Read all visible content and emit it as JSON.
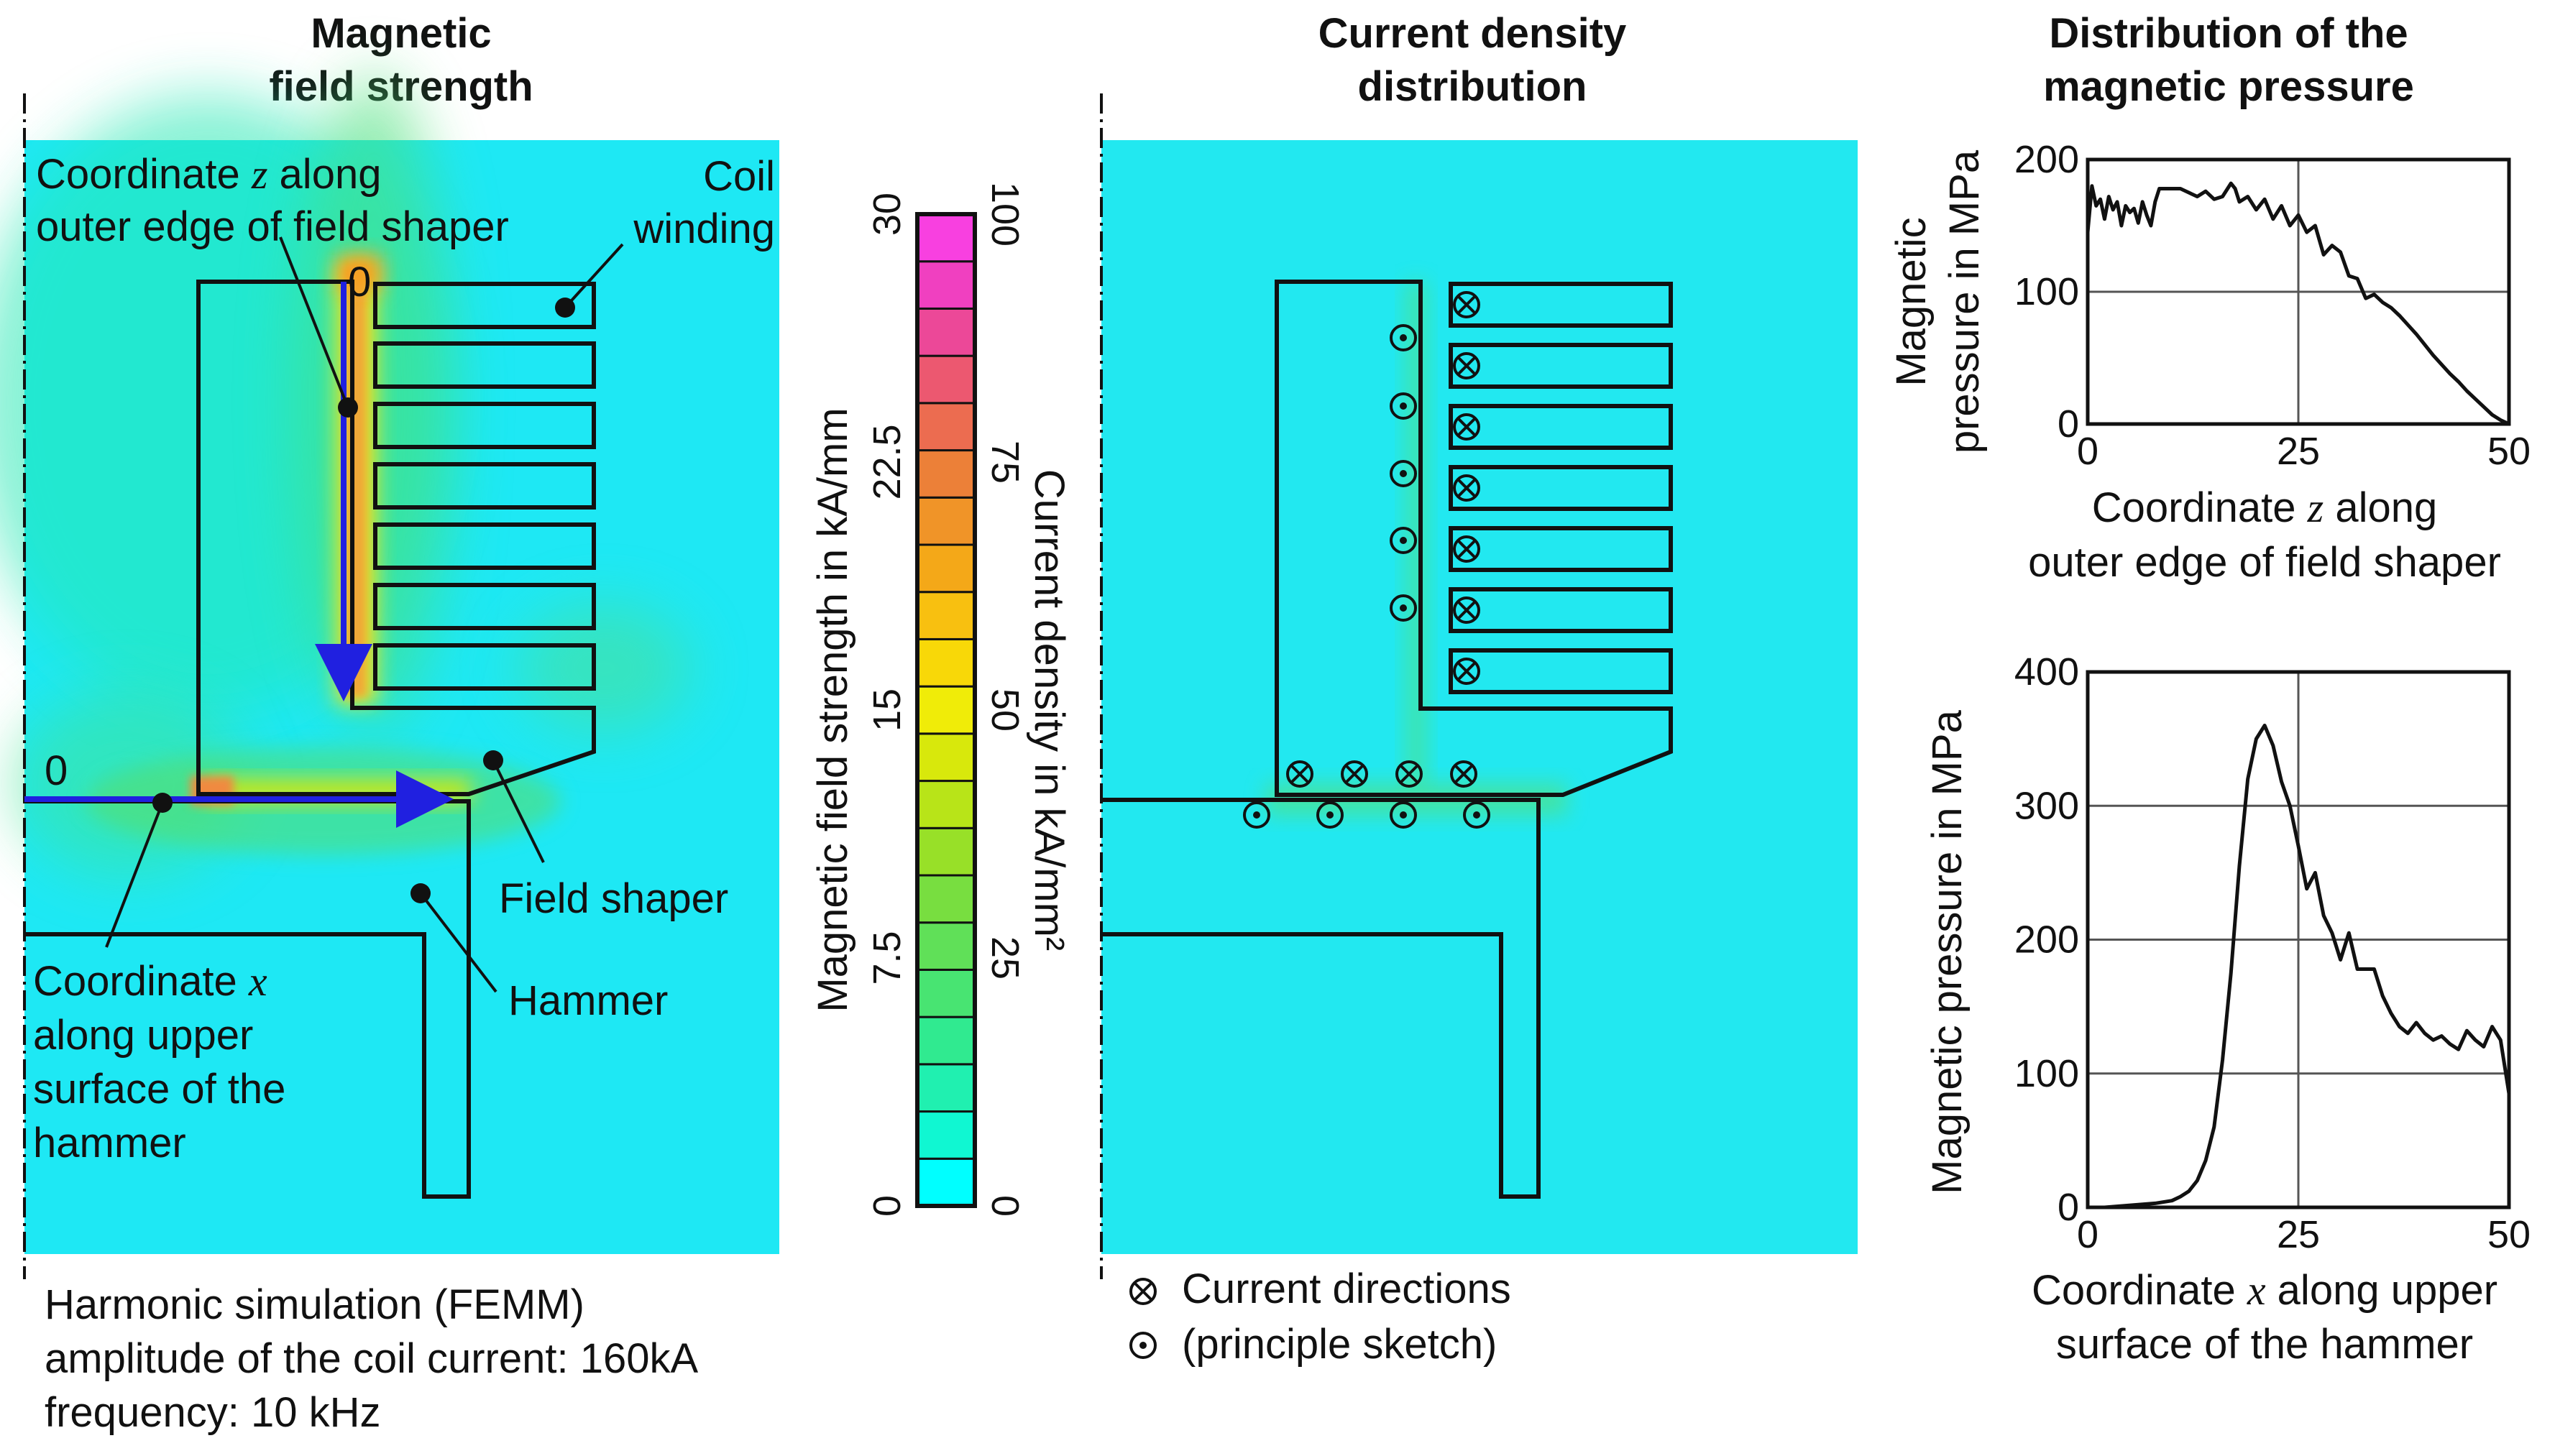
{
  "titles": {
    "field_line1": "Magnetic",
    "field_line2": "field strength",
    "current_line1": "Current density",
    "current_line2": "distribution",
    "pressure_line1": "Distribution of the",
    "pressure_line2": "magnetic pressure"
  },
  "labels": {
    "coord_z_pre": "Coordinate ",
    "coord_z_var": "z",
    "coord_z_post": " along",
    "coord_z_line2": "outer edge of field shaper",
    "coil_line1": "Coil",
    "coil_line2": "winding",
    "field_shaper": "Field shaper",
    "hammer": "Hammer",
    "coord_x_pre": "Coordinate ",
    "coord_x_var": "x",
    "coord_x_line2": "along upper",
    "coord_x_line3": "surface of the",
    "coord_x_line4": "hammer",
    "zero_z": "0",
    "zero_x": "0"
  },
  "notes": {
    "line1": "Harmonic simulation (FEMM)",
    "line2": "amplitude of the coil current: 160kA",
    "line3": "frequency: 10 kHz"
  },
  "legend": {
    "cross_label": "Current directions",
    "dot_label": "(principle sketch)"
  },
  "colorbar": {
    "field_label": "Magnetic field strength in kA/mm",
    "current_label": "Current density in kA/mm²",
    "field_ticks": [
      "0",
      "7.5",
      "15",
      "22.5",
      "30"
    ],
    "current_ticks": [
      "0",
      "25",
      "50",
      "75",
      "100"
    ],
    "colors": [
      "#00ffff",
      "#10f7d2",
      "#20f0b0",
      "#30ea90",
      "#48e472",
      "#60e058",
      "#78de40",
      "#98e028",
      "#b8e418",
      "#d8e80c",
      "#f0ec08",
      "#f8d808",
      "#f8c010",
      "#f4a818",
      "#f09428",
      "#ec8038",
      "#ec6c50",
      "#ec5870",
      "#ec4898",
      "#f040c0",
      "#f840e0"
    ]
  },
  "colors": {
    "field_bg": "#1ee8f4",
    "current_bg": "#22e8f0",
    "arrow": "#2020e0"
  },
  "chart_data": [
    {
      "type": "line",
      "title": "Distribution of the magnetic pressure",
      "xlabel_pre": "Coordinate ",
      "xlabel_var": "z",
      "xlabel_post": " along",
      "xlabel_line2": "outer edge of field shaper",
      "ylabel_line1": "Magnetic",
      "ylabel_line2": "pressure in MPa",
      "xlim": [
        0,
        50
      ],
      "ylim": [
        0,
        200
      ],
      "xticks": [
        "0",
        "25",
        "50"
      ],
      "yticks": [
        "0",
        "100",
        "200"
      ],
      "grid": true,
      "x": [
        0,
        0.5,
        1,
        1.5,
        2,
        2.5,
        3,
        3.5,
        4,
        4.5,
        5,
        5.5,
        6,
        6.5,
        7,
        7.5,
        8,
        8.5,
        9,
        10,
        11,
        12,
        13,
        14,
        15,
        16,
        17,
        17.5,
        18,
        19,
        20,
        21,
        22,
        23,
        24,
        25,
        26,
        27,
        28,
        29,
        30,
        31,
        32,
        33,
        34,
        35,
        36,
        37,
        38,
        39,
        40,
        41,
        42,
        43,
        44,
        45,
        46,
        47,
        48,
        49,
        50
      ],
      "y": [
        145,
        180,
        165,
        170,
        155,
        172,
        162,
        168,
        150,
        165,
        160,
        163,
        152,
        168,
        158,
        150,
        168,
        178,
        178,
        178,
        178,
        175,
        172,
        176,
        170,
        172,
        182,
        178,
        168,
        172,
        162,
        170,
        155,
        165,
        150,
        158,
        145,
        150,
        128,
        135,
        130,
        112,
        110,
        95,
        98,
        92,
        88,
        82,
        75,
        68,
        60,
        52,
        45,
        38,
        32,
        25,
        19,
        13,
        7,
        3,
        0
      ]
    },
    {
      "type": "line",
      "title": "Distribution of the magnetic pressure",
      "xlabel_pre": "Coordinate ",
      "xlabel_var": "x",
      "xlabel_post": " along upper",
      "xlabel_line2": "surface of the hammer",
      "ylabel": "Magnetic pressure in MPa",
      "xlim": [
        0,
        50
      ],
      "ylim": [
        0,
        400
      ],
      "xticks": [
        "0",
        "25",
        "50"
      ],
      "yticks": [
        "0",
        "100",
        "200",
        "300",
        "400"
      ],
      "grid": true,
      "x": [
        0,
        2,
        4,
        6,
        8,
        10,
        11,
        12,
        13,
        14,
        15,
        16,
        17,
        18,
        19,
        20,
        21,
        22,
        23,
        24,
        25,
        26,
        27,
        28,
        29,
        30,
        31,
        32,
        33,
        34,
        35,
        36,
        37,
        38,
        39,
        40,
        41,
        42,
        43,
        44,
        45,
        46,
        47,
        48,
        49,
        50
      ],
      "y": [
        0,
        0,
        1,
        2,
        3,
        5,
        8,
        12,
        20,
        35,
        60,
        110,
        175,
        255,
        320,
        350,
        360,
        345,
        318,
        300,
        270,
        238,
        250,
        218,
        205,
        185,
        205,
        178,
        178,
        178,
        158,
        145,
        135,
        130,
        138,
        130,
        125,
        128,
        122,
        118,
        132,
        125,
        120,
        135,
        125,
        85
      ]
    }
  ]
}
